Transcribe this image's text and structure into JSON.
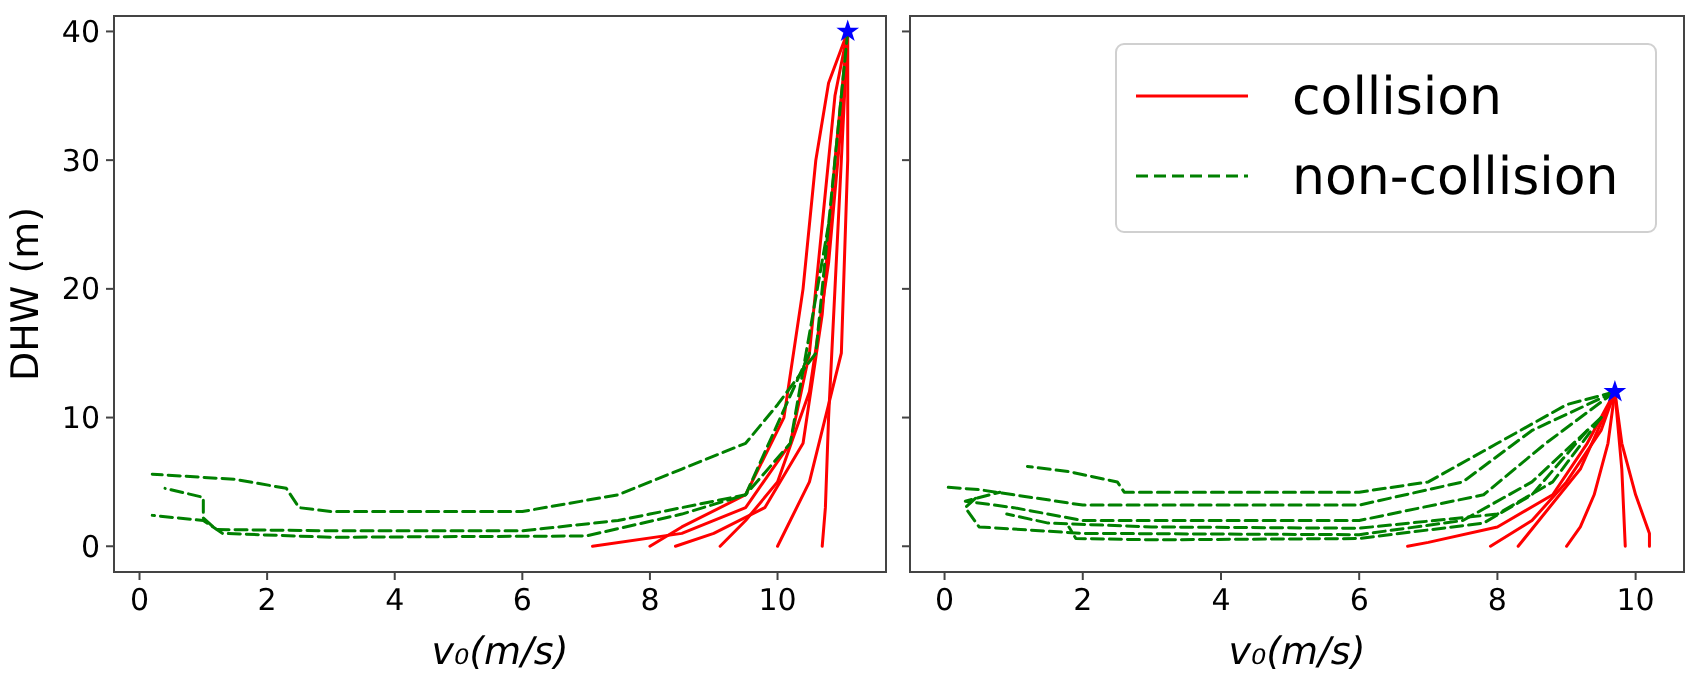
{
  "chart_data": [
    {
      "type": "line",
      "ylabel": "DHW (m)",
      "xlabel": "v₀(m/s)",
      "xlim": [
        -0.4,
        11.7
      ],
      "ylim": [
        -2,
        41.2
      ],
      "xticks": [
        0,
        2,
        4,
        6,
        8,
        10
      ],
      "yticks": [
        0,
        10,
        20,
        30,
        40
      ],
      "series": [
        {
          "color": "#ff0000",
          "line_style": "solid",
          "x": [
            11.1,
            10.9,
            10.7,
            10.5,
            10.2,
            9.5,
            8.5,
            7.1
          ],
          "values": [
            40,
            35,
            25,
            15,
            8,
            3,
            1,
            0
          ]
        },
        {
          "color": "#ff0000",
          "line_style": "solid",
          "x": [
            11.1,
            11.0,
            10.9,
            10.8,
            10.75,
            10.7
          ],
          "values": [
            40,
            30,
            20,
            10,
            3,
            0
          ]
        },
        {
          "color": "#ff0000",
          "line_style": "solid",
          "x": [
            11.1,
            10.8,
            10.6,
            10.4,
            10.1,
            9.5,
            8.5,
            8.0
          ],
          "values": [
            40,
            36,
            30,
            20,
            10,
            4,
            1.5,
            0
          ]
        },
        {
          "color": "#ff0000",
          "line_style": "solid",
          "x": [
            11.1,
            11.0,
            10.8,
            10.5,
            10.0,
            9.5,
            9.1
          ],
          "values": [
            40,
            33,
            22,
            12,
            5,
            2,
            0
          ]
        },
        {
          "color": "#ff0000",
          "line_style": "solid",
          "x": [
            11.1,
            11.1,
            11.0,
            10.5,
            10.2,
            10.0
          ],
          "values": [
            40,
            30,
            15,
            5,
            2,
            0
          ]
        },
        {
          "color": "#ff0000",
          "line_style": "solid",
          "x": [
            11.1,
            10.9,
            10.7,
            10.4,
            9.8,
            9.0,
            8.4
          ],
          "values": [
            40,
            30,
            18,
            8,
            3,
            1,
            0
          ]
        },
        {
          "color": "#008000",
          "line_style": "dashed",
          "x": [
            11.1,
            10.6,
            10.0,
            9.5,
            8.5,
            7.5,
            6,
            3,
            2.5,
            2.3,
            1.5,
            0.2
          ],
          "values": [
            40,
            15,
            11,
            8,
            6,
            4,
            2.7,
            2.7,
            3,
            4.5,
            5.2,
            5.6
          ]
        },
        {
          "color": "#008000",
          "line_style": "dashed",
          "x": [
            10.8,
            10.2,
            9.5,
            8,
            7.5,
            6,
            3,
            1.2,
            1.0,
            1.0,
            0.4
          ],
          "values": [
            25,
            8,
            4,
            2.5,
            2,
            1.2,
            1.2,
            1.3,
            2.2,
            3.8,
            4.5
          ]
        },
        {
          "color": "#008000",
          "line_style": "dashed",
          "x": [
            10.5,
            9.5,
            8.5,
            7,
            3,
            1.3,
            1,
            0.2
          ],
          "values": [
            15,
            4,
            2.5,
            0.8,
            0.7,
            1,
            2,
            2.4
          ]
        },
        {
          "type": "scatter",
          "marker": "star",
          "color": "#0000ff",
          "x": [
            11.1
          ],
          "values": [
            40
          ]
        }
      ]
    },
    {
      "type": "line",
      "xlabel": "v₀(m/s)",
      "xlim": [
        -0.5,
        10.7
      ],
      "ylim": [
        -2,
        41.2
      ],
      "xticks": [
        0,
        2,
        4,
        6,
        8,
        10
      ],
      "yticks": [
        0,
        10,
        20,
        30,
        40
      ],
      "tick_labels": "x",
      "legend": "top right",
      "series": [
        {
          "name": "collision",
          "color": "#ff0000",
          "line_style": "solid",
          "x": [
            9.7,
            9.3,
            8.8,
            8,
            7,
            6.7
          ],
          "values": [
            12,
            8,
            4,
            1.5,
            0.3,
            0
          ]
        },
        {
          "color": "#ff0000",
          "line_style": "solid",
          "x": [
            9.7,
            9.6,
            9.4,
            9.2,
            9.0
          ],
          "values": [
            12,
            8,
            4,
            1.5,
            0
          ]
        },
        {
          "color": "#ff0000",
          "line_style": "solid",
          "x": [
            9.7,
            9.8,
            10.0,
            10.2,
            10.2
          ],
          "values": [
            12,
            8,
            4,
            1,
            0
          ]
        },
        {
          "color": "#ff0000",
          "line_style": "solid",
          "x": [
            9.7,
            9.5,
            9.0,
            8.5,
            7.9
          ],
          "values": [
            12,
            9,
            5,
            2,
            0
          ]
        },
        {
          "color": "#ff0000",
          "line_style": "solid",
          "x": [
            9.7,
            9.8,
            9.85
          ],
          "values": [
            12,
            6,
            0
          ]
        },
        {
          "color": "#ff0000",
          "line_style": "solid",
          "x": [
            9.7,
            9.2,
            8.6,
            8.3
          ],
          "values": [
            12,
            6,
            2,
            0
          ]
        },
        {
          "name": "non-collision",
          "color": "#008000",
          "line_style": "dashed",
          "x": [
            9.7,
            9.0,
            8,
            7,
            6,
            2.6,
            2.5,
            1.8,
            1.2
          ],
          "values": [
            12,
            11,
            8,
            5,
            4.2,
            4.2,
            5,
            5.8,
            6.2
          ]
        },
        {
          "color": "#008000",
          "line_style": "dashed",
          "x": [
            9.7,
            8.5,
            7.5,
            6,
            2,
            0.5,
            0.0
          ],
          "values": [
            12,
            9,
            5,
            3.2,
            3.2,
            4.4,
            4.6
          ]
        },
        {
          "color": "#008000",
          "line_style": "dashed",
          "x": [
            9.7,
            8.7,
            7.8,
            6,
            2,
            1.0,
            0.3,
            0.8
          ],
          "values": [
            12,
            8,
            4,
            2.0,
            2,
            3.0,
            3.5,
            4.2
          ]
        },
        {
          "color": "#008000",
          "line_style": "dashed",
          "x": [
            9.5,
            8.5,
            7.5,
            6,
            2,
            0.5,
            0.3,
            0.5
          ],
          "values": [
            10,
            5,
            2,
            0.9,
            1,
            1.5,
            3,
            4
          ]
        },
        {
          "color": "#008000",
          "line_style": "dashed",
          "x": [
            9.5,
            8.8,
            8,
            6,
            3,
            1.5,
            0.9
          ],
          "values": [
            10,
            5,
            2.5,
            1.4,
            1.5,
            1.8,
            2.5
          ]
        },
        {
          "color": "#008000",
          "line_style": "dashed",
          "x": [
            9.3,
            8.5,
            7.8,
            6,
            3,
            1.9,
            1.8
          ],
          "values": [
            9,
            4,
            1.8,
            0.6,
            0.5,
            0.6,
            1.5
          ]
        },
        {
          "type": "scatter",
          "marker": "star",
          "color": "#0000ff",
          "x": [
            9.7
          ],
          "values": [
            12
          ]
        }
      ]
    }
  ]
}
